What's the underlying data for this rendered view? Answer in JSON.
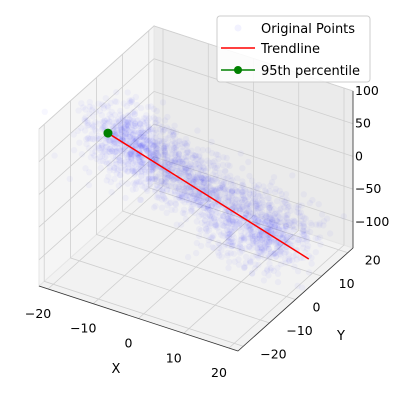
{
  "chart_data": {
    "type": "scatter",
    "projection": "3d",
    "title": "",
    "xlabel": "X",
    "ylabel": "Y",
    "zlabel": "",
    "xlim": [
      -22,
      22
    ],
    "ylim": [
      -22,
      22
    ],
    "zlim": [
      -140,
      100
    ],
    "xticks": [
      -20,
      -10,
      0,
      10,
      20
    ],
    "yticks": [
      -20,
      -10,
      0,
      10,
      20
    ],
    "zticks": [
      -100,
      -50,
      0,
      50,
      100
    ],
    "grid": true,
    "legend": {
      "placement": "top-right",
      "entries": [
        "Original Points",
        "Trendline",
        "95th percentile"
      ]
    },
    "colors": {
      "points": "#0000ff",
      "trendline": "#ff0000",
      "percentile": "#008000"
    },
    "series": [
      {
        "name": "Original Points",
        "kind": "point-cloud",
        "opacity": 0.03,
        "clusters": [
          {
            "center": [
              -14,
              -4,
              45
            ],
            "spread": [
              4,
              4,
              18
            ]
          },
          {
            "center": [
              -9,
              -1,
              10
            ],
            "spread": [
              4,
              4,
              15
            ]
          },
          {
            "center": [
              -2,
              3,
              -30
            ],
            "spread": [
              4,
              4,
              15
            ]
          },
          {
            "center": [
              6,
              6,
              -70
            ],
            "spread": [
              4,
              5,
              15
            ]
          },
          {
            "center": [
              12,
              9,
              -100
            ],
            "spread": [
              4,
              5,
              14
            ]
          }
        ]
      },
      {
        "name": "Trendline",
        "start": [
          -16,
          -6,
          50
        ],
        "end": [
          18,
          12,
          -130
        ]
      },
      {
        "name": "95th percentile",
        "point": [
          -16,
          -6,
          50
        ]
      }
    ]
  }
}
